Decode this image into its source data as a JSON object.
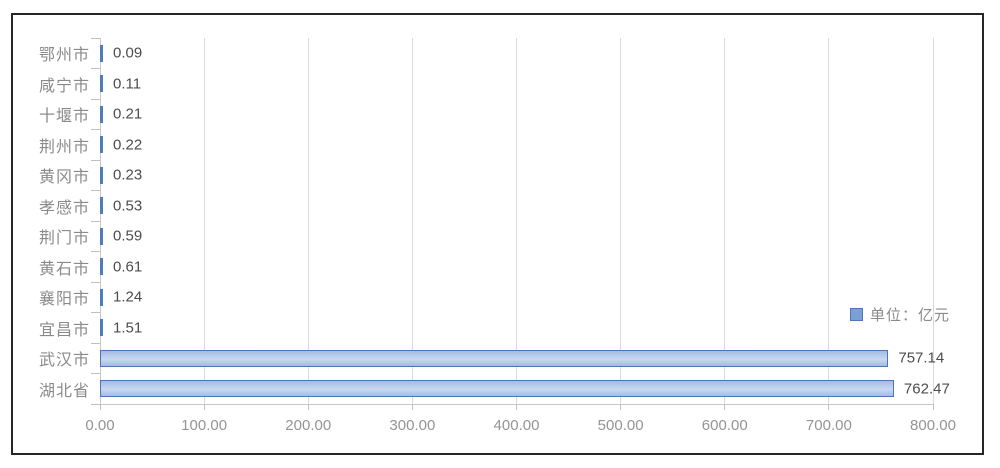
{
  "chart_data": {
    "type": "bar",
    "orientation": "horizontal",
    "title": "",
    "legend_label": "单位：亿元",
    "unit": "亿元",
    "categories": [
      "鄂州市",
      "咸宁市",
      "十堰市",
      "荆州市",
      "黄冈市",
      "孝感市",
      "荆门市",
      "黄石市",
      "襄阳市",
      "宜昌市",
      "武汉市",
      "湖北省"
    ],
    "values": [
      0.09,
      0.11,
      0.21,
      0.22,
      0.23,
      0.53,
      0.59,
      0.61,
      1.24,
      1.51,
      757.14,
      762.47
    ],
    "value_labels": [
      "0.09",
      "0.11",
      "0.21",
      "0.22",
      "0.23",
      "0.53",
      "0.59",
      "0.61",
      "1.24",
      "1.51",
      "757.14",
      "762.47"
    ],
    "x_tick_labels": [
      "0.00",
      "100.00",
      "200.00",
      "300.00",
      "400.00",
      "500.00",
      "600.00",
      "700.00",
      "800.00"
    ],
    "x_tick_values": [
      0,
      100,
      200,
      300,
      400,
      500,
      600,
      700,
      800
    ],
    "xlim": [
      0,
      800
    ],
    "grid": "vertical-only",
    "legend_position": "right-middle",
    "colors": {
      "bar_border": "#4c77b4",
      "bar_fill_edge": "#a3bce2",
      "bar_fill_mid": "#c9d8f0",
      "tiny_bar": "#4f7cba",
      "gridline": "#d9d9d9",
      "axis_line": "#c9c9c9",
      "tick": "#bfbfbf",
      "category_label": "#8a8a8a",
      "value_label": "#4d4d4d",
      "axis_label": "#949494",
      "legend_text": "#8a8a8a",
      "legend_marker_fill": "#7ba1d4",
      "frame_border": "#262626"
    }
  }
}
